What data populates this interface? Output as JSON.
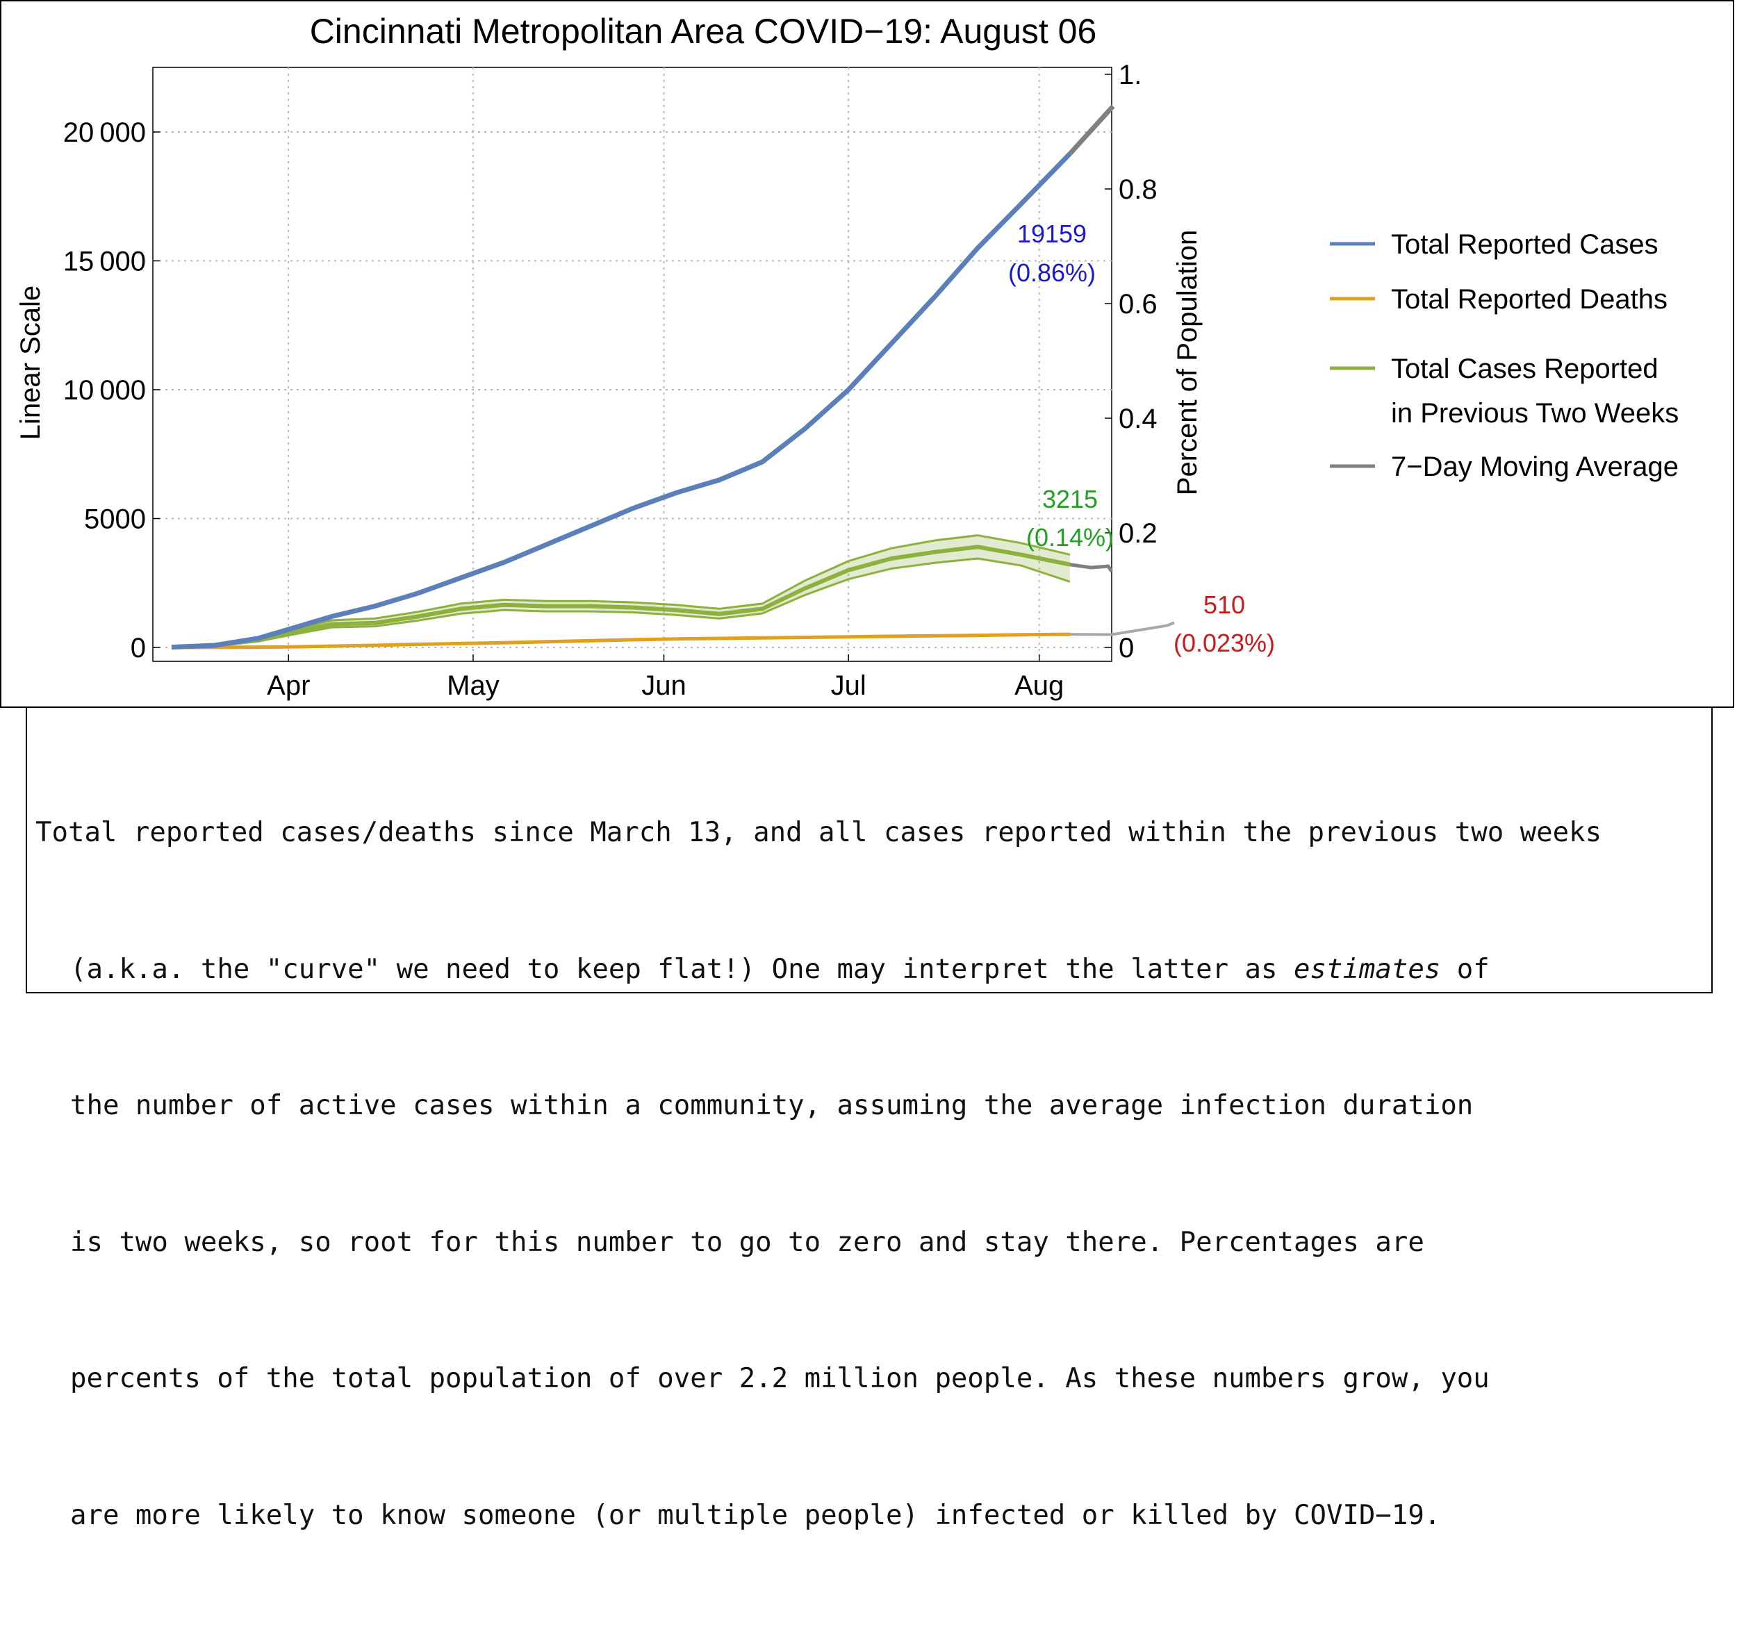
{
  "chart_data": {
    "type": "line",
    "title": "Cincinnati Metropolitan Area COVID−19: August 06",
    "ylabel_left": "Linear Scale",
    "ylabel_right": "Percent of Population",
    "xlabel": "",
    "ylim": [
      0,
      22500
    ],
    "ylim_right": [
      0,
      1.0
    ],
    "grid": true,
    "legend_position": "right",
    "x_ticks": [
      "Apr",
      "May",
      "Jun",
      "Jul",
      "Aug"
    ],
    "y_ticks_left": [
      "0",
      "5000",
      "10 000",
      "15 000",
      "20 000"
    ],
    "y_ticks_right": [
      "0",
      "0.2",
      "0.4",
      "0.6",
      "0.8",
      "1."
    ],
    "x_dates": [
      "Mar 13",
      "Mar 20",
      "Mar 27",
      "Apr 1",
      "Apr 8",
      "Apr 15",
      "Apr 22",
      "Apr 29",
      "May 6",
      "May 13",
      "May 20",
      "May 27",
      "Jun 3",
      "Jun 10",
      "Jun 17",
      "Jun 24",
      "Jul 1",
      "Jul 8",
      "Jul 15",
      "Jul 22",
      "Jul 29",
      "Aug 6"
    ],
    "x_day": [
      0,
      7,
      14,
      19,
      26,
      33,
      40,
      47,
      54,
      61,
      68,
      75,
      82,
      89,
      96,
      103,
      110,
      117,
      124,
      131,
      138,
      146
    ],
    "series": [
      {
        "name": "Total Reported Cases",
        "color": "#5b7fb8",
        "values": [
          10,
          80,
          350,
          700,
          1200,
          1600,
          2100,
          2700,
          3300,
          4000,
          4700,
          5400,
          6000,
          6500,
          7200,
          8500,
          10000,
          11800,
          13600,
          15500,
          17200,
          19159
        ]
      },
      {
        "name": "Total Reported Deaths",
        "color": "#e0a020",
        "values": [
          0,
          2,
          10,
          20,
          50,
          80,
          120,
          150,
          180,
          220,
          260,
          300,
          330,
          350,
          370,
          390,
          410,
          430,
          450,
          470,
          490,
          510
        ]
      },
      {
        "name": "Total Cases Reported in Previous Two Weeks",
        "color": "#8db03e",
        "values": [
          10,
          70,
          280,
          550,
          900,
          950,
          1200,
          1500,
          1650,
          1600,
          1600,
          1550,
          1450,
          1300,
          1500,
          2300,
          3000,
          3450,
          3700,
          3900,
          3600,
          3215
        ],
        "band_upper": [
          20,
          90,
          340,
          640,
          1050,
          1120,
          1380,
          1700,
          1850,
          1800,
          1800,
          1750,
          1650,
          1500,
          1700,
          2600,
          3350,
          3850,
          4150,
          4350,
          4050,
          3600
        ],
        "band_lower": [
          5,
          55,
          230,
          470,
          780,
          820,
          1040,
          1310,
          1450,
          1400,
          1400,
          1360,
          1260,
          1120,
          1320,
          2040,
          2650,
          3060,
          3280,
          3450,
          3180,
          2550
        ]
      },
      {
        "name": "7−Day Moving Average",
        "color": "#808080"
      }
    ],
    "annotations": [
      {
        "series": "Total Reported Cases",
        "value": "19159",
        "percent": "(0.86%)",
        "color": "#1a1acc"
      },
      {
        "series": "Total Cases Reported in Previous Two Weeks",
        "value": "3215",
        "percent": "(0.14%)",
        "color": "#22a022"
      },
      {
        "series": "Total Reported Deaths",
        "value": "510",
        "percent": "(0.023%)",
        "color": "#cc1a1a"
      }
    ]
  },
  "legend": [
    {
      "label": "Total Reported Cases",
      "color": "#5b7fb8"
    },
    {
      "label": "Total Reported Deaths",
      "color": "#e0a020"
    },
    {
      "label": "Total Cases Reported",
      "label2": "in Previous Two Weeks",
      "color": "#8db03e"
    },
    {
      "label": "7−Day Moving Average",
      "color": "#808080"
    }
  ],
  "caption": {
    "line1": "Total reported cases/deaths since March 13, and all cases reported within the previous two weeks",
    "line2a": "(a.k.a. the \"curve\" we need to keep flat!) One may interpret the latter as ",
    "line2b": "estimates",
    "line2c": " of",
    "line3": "the number of active cases within a community, assuming the average infection duration",
    "line4": "is two weeks, so root for this number to go to zero and stay there. Percentages are",
    "line5": "percents of the total population of over 2.2 million people. As these numbers grow, you",
    "line6": "are more likely to know someone (or multiple people) infected or killed by COVID−19."
  }
}
